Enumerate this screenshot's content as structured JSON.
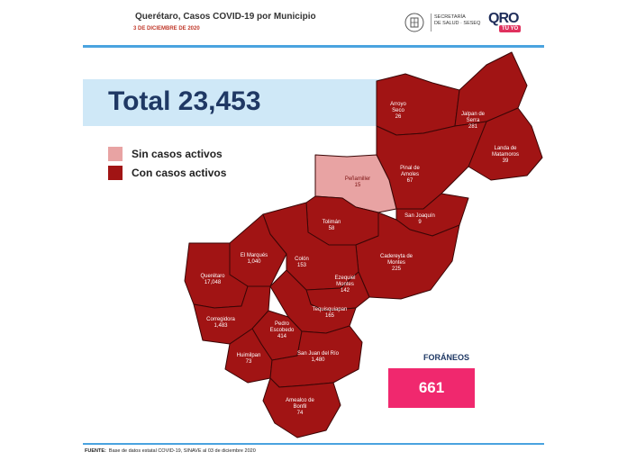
{
  "header": {
    "title": "Querétaro, Casos COVID-19 por Municipio",
    "date": "3 DE DICIEMBRE DE 2020",
    "secretaria_line1": "SECRETARÍA",
    "secretaria_line2": "DE SALUD · SESEQ",
    "logo_text": "QRO",
    "logo_badge": "TÚ YO"
  },
  "total": {
    "text": "Total 23,453"
  },
  "legend": [
    {
      "label": "Sin casos activos",
      "color": "#e8a3a3"
    },
    {
      "label": "Con casos activos",
      "color": "#a11414"
    }
  ],
  "colors": {
    "active": "#a11414",
    "inactive": "#e8a3a3",
    "border": "#3a0606",
    "accent": "#f0286e"
  },
  "municipalities": [
    {
      "name": "Arroyo Seco",
      "line1": "Arroyo",
      "line2": "Seco",
      "cases": "26",
      "active": true
    },
    {
      "name": "Jalpan de Serra",
      "line1": "Jalpan de",
      "line2": "Serra",
      "cases": "281",
      "active": true
    },
    {
      "name": "Landa de Matamoros",
      "line1": "Landa de",
      "line2": "Matamoros",
      "cases": "39",
      "active": true
    },
    {
      "name": "Pinal de Amoles",
      "line1": "Pinal de",
      "line2": "Amoles",
      "cases": "67",
      "active": true
    },
    {
      "name": "Peñamiller",
      "line1": "Peñamiller",
      "line2": "",
      "cases": "15",
      "active": false
    },
    {
      "name": "San Joaquín",
      "line1": "San Joaquín",
      "line2": "",
      "cases": "9",
      "active": true
    },
    {
      "name": "Tolimán",
      "line1": "Tolimán",
      "line2": "",
      "cases": "58",
      "active": true
    },
    {
      "name": "El Marqués",
      "line1": "El Marqués",
      "line2": "",
      "cases": "1,040",
      "active": true
    },
    {
      "name": "Colón",
      "line1": "Colón",
      "line2": "",
      "cases": "153",
      "active": true
    },
    {
      "name": "Cadereyta de Montes",
      "line1": "Cadereyta de",
      "line2": "Montes",
      "cases": "225",
      "active": true
    },
    {
      "name": "Querétaro",
      "line1": "Querétaro",
      "line2": "",
      "cases": "17,048",
      "active": true
    },
    {
      "name": "Ezequiel Montes",
      "line1": "Ezequiel",
      "line2": "Montes",
      "cases": "142",
      "active": true
    },
    {
      "name": "Tequisquiapan",
      "line1": "Tequisquiapan",
      "line2": "",
      "cases": "165",
      "active": true
    },
    {
      "name": "Corregidora",
      "line1": "Corregidora",
      "line2": "",
      "cases": "1,483",
      "active": true
    },
    {
      "name": "Pedro Escobedo",
      "line1": "Pedro",
      "line2": "Escobedo",
      "cases": "414",
      "active": true
    },
    {
      "name": "Huimilpan",
      "line1": "Huimilpan",
      "line2": "",
      "cases": "73",
      "active": true
    },
    {
      "name": "San Juan del Río",
      "line1": "San Juan del Río",
      "line2": "",
      "cases": "1,480",
      "active": true
    },
    {
      "name": "Amealco de Bonfil",
      "line1": "Amealco de",
      "line2": "Bonfil",
      "cases": "74",
      "active": true
    }
  ],
  "foraneos": {
    "label": "FORÁNEOS",
    "value": "661"
  },
  "footer": {
    "label": "FUENTE:",
    "text": "Base de datos estatal COVID-19, SINAVE al 03 de diciembre 2020"
  }
}
